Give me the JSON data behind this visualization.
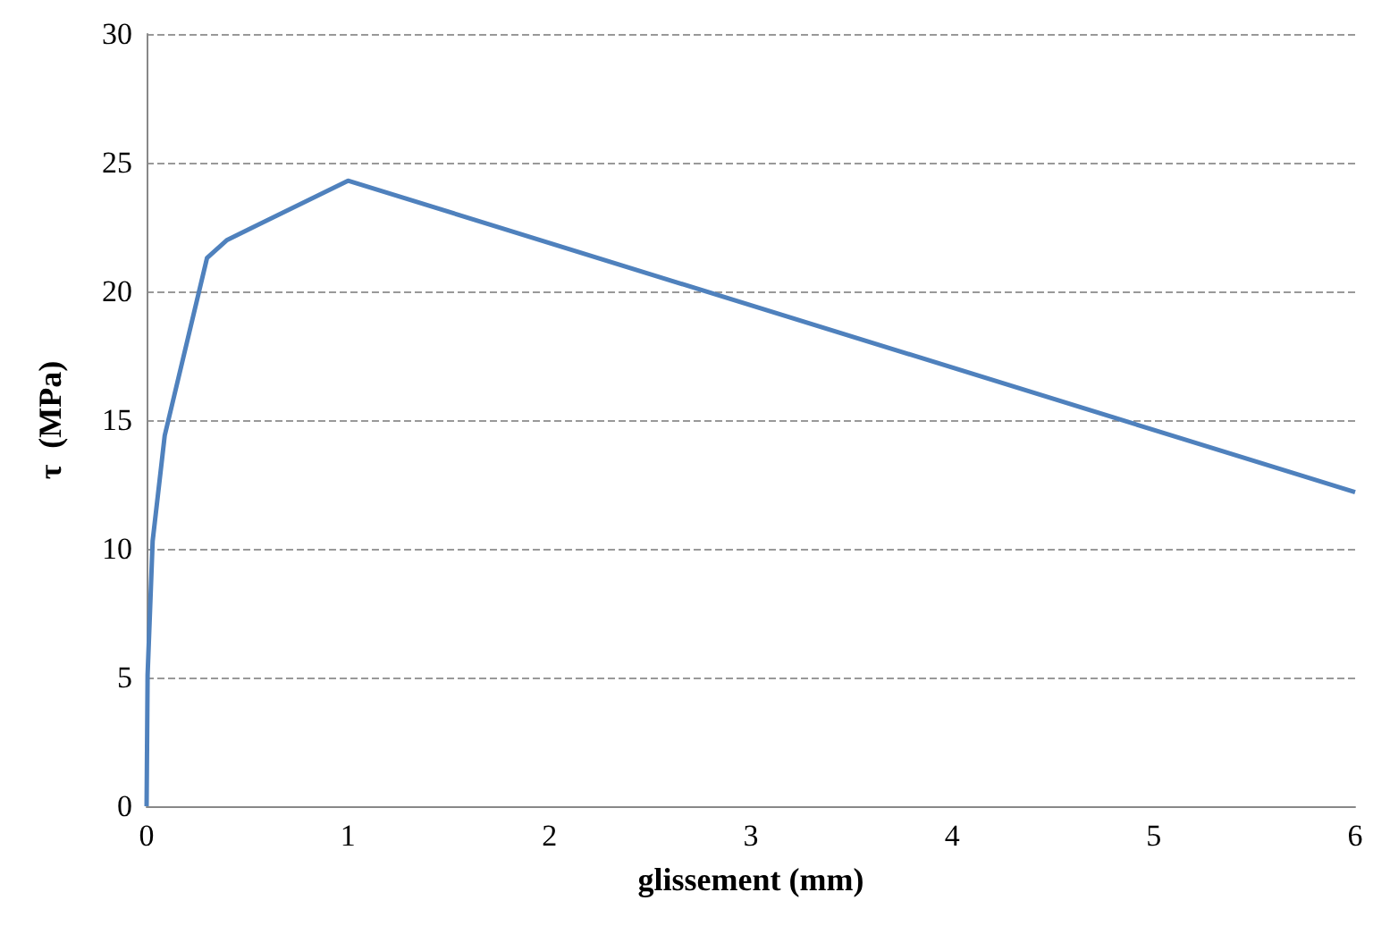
{
  "chart_data": {
    "type": "line",
    "xlabel": "glissement (mm)",
    "ylabel": "τ  (MPa)",
    "x": [
      0,
      0.005,
      0.03,
      0.09,
      0.3,
      0.4,
      1,
      6
    ],
    "series": [
      {
        "color": "#4f81bd",
        "values": [
          0,
          5.1,
          10.3,
          14.4,
          21.3,
          22,
          24.3,
          12.2
        ]
      }
    ],
    "xlim": [
      0,
      6
    ],
    "xticks": [
      0,
      1,
      2,
      3,
      4,
      5,
      6
    ],
    "ylim": [
      0,
      30
    ],
    "yticks": [
      0,
      5,
      10,
      15,
      20,
      25,
      30
    ],
    "grid": "y",
    "marker": "none",
    "line_style": "solid"
  }
}
